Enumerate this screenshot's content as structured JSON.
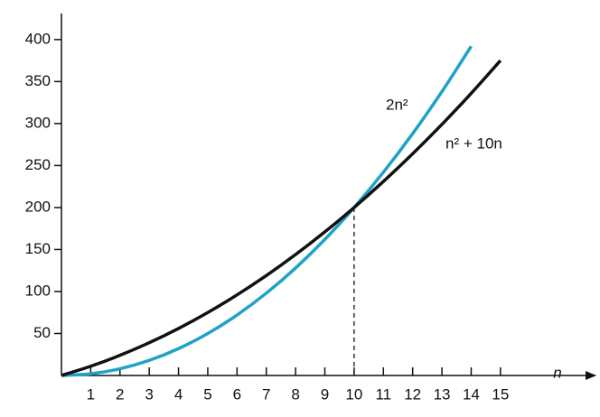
{
  "chart_data": {
    "type": "line",
    "x": [
      0,
      1,
      2,
      3,
      4,
      5,
      6,
      7,
      8,
      9,
      10,
      11,
      12,
      13,
      14,
      15
    ],
    "series": [
      {
        "name": "2n²",
        "color": "#1ea3c4",
        "values": [
          0,
          2,
          8,
          18,
          32,
          50,
          72,
          98,
          128,
          162,
          200,
          242,
          288,
          338,
          392,
          null
        ]
      },
      {
        "name": "n² + 10n",
        "color": "#111111",
        "values": [
          0,
          11,
          24,
          39,
          56,
          75,
          96,
          119,
          144,
          171,
          200,
          231,
          264,
          299,
          336,
          375
        ]
      }
    ],
    "x_label": "n",
    "xlim": [
      0,
      18
    ],
    "ylim": [
      0,
      431
    ],
    "xticks": [
      1,
      2,
      3,
      4,
      5,
      6,
      7,
      8,
      9,
      10,
      11,
      12,
      13,
      14,
      15
    ],
    "yticks": [
      50,
      100,
      150,
      200,
      250,
      300,
      350,
      400
    ],
    "grid": false
  }
}
